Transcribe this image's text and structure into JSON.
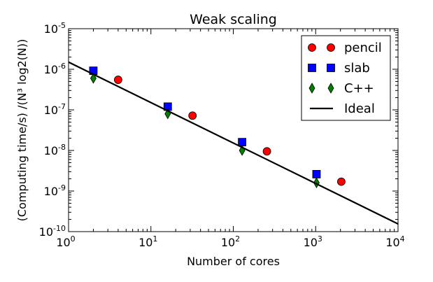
{
  "chart_data": {
    "type": "scatter",
    "title": "Weak scaling",
    "xlabel": "Number of cores",
    "ylabel": "(Computing time/s) /(N³ log2(N))",
    "x_scale": "log",
    "y_scale": "log",
    "xlim": [
      1,
      10000
    ],
    "ylim": [
      1e-10,
      1e-05
    ],
    "grid": false,
    "legend_position": "top-right",
    "x_ticks": [
      {
        "value": 1,
        "base": "10",
        "exp": "0"
      },
      {
        "value": 10,
        "base": "10",
        "exp": "1"
      },
      {
        "value": 100,
        "base": "10",
        "exp": "2"
      },
      {
        "value": 1000,
        "base": "10",
        "exp": "3"
      },
      {
        "value": 10000,
        "base": "10",
        "exp": "4"
      }
    ],
    "y_ticks": [
      {
        "value": 1e-10,
        "base": "10",
        "exp": "-10"
      },
      {
        "value": 1e-09,
        "base": "10",
        "exp": "-9"
      },
      {
        "value": 1e-08,
        "base": "10",
        "exp": "-8"
      },
      {
        "value": 1e-07,
        "base": "10",
        "exp": "-7"
      },
      {
        "value": 1e-06,
        "base": "10",
        "exp": "-6"
      },
      {
        "value": 1e-05,
        "base": "10",
        "exp": "-5"
      }
    ],
    "series": [
      {
        "name": "pencil",
        "marker": "circle",
        "color": "#ff0000",
        "points": [
          {
            "x": 4,
            "y": 5.5e-07
          },
          {
            "x": 32,
            "y": 7.2e-08
          },
          {
            "x": 256,
            "y": 9.5e-09
          },
          {
            "x": 2048,
            "y": 1.7e-09
          }
        ]
      },
      {
        "name": "slab",
        "marker": "square",
        "color": "#0000ff",
        "points": [
          {
            "x": 2,
            "y": 9.2e-07
          },
          {
            "x": 16,
            "y": 1.2e-07
          },
          {
            "x": 128,
            "y": 1.6e-08
          },
          {
            "x": 1024,
            "y": 2.6e-09
          }
        ]
      },
      {
        "name": "C++",
        "marker": "diamond",
        "color": "#008000",
        "points": [
          {
            "x": 2,
            "y": 6e-07
          },
          {
            "x": 16,
            "y": 8e-08
          },
          {
            "x": 128,
            "y": 1e-08
          },
          {
            "x": 1024,
            "y": 1.6e-09
          }
        ]
      },
      {
        "name": "Ideal",
        "marker": "line",
        "color": "#000000",
        "points": [
          {
            "x": 1,
            "y": 1.5e-06
          },
          {
            "x": 10000,
            "y": 1.55e-10
          }
        ]
      }
    ]
  }
}
